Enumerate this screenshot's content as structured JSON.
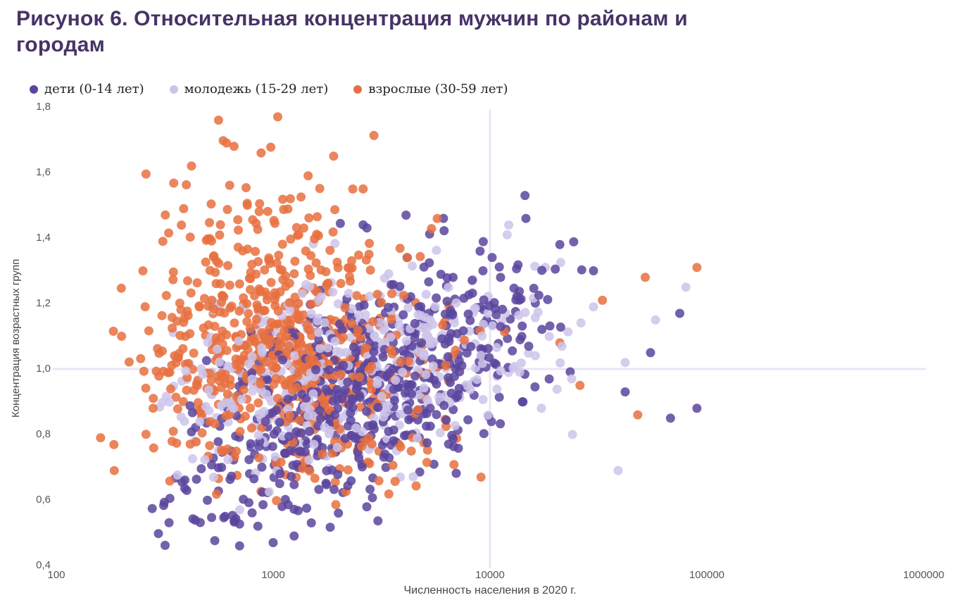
{
  "figure": {
    "title_lines": [
      "Рисунок 6. Относительная концентрация мужчин по районам и",
      "городам"
    ]
  },
  "theme": {
    "title_color": "#463366",
    "axis_text_color": "#55565a",
    "axis_title_color": "#45464a",
    "legend_text_color": "#222222",
    "grid_color": "#e9e6f4",
    "background": "#ffffff"
  },
  "chart_data": {
    "type": "scatter",
    "title": "Рисунок 6. Относительная концентрация мужчин по районам и городам",
    "xlabel": "Численность населения в 2020 г.",
    "ylabel": "Концентрация возрастных групп",
    "x_scale": "log10",
    "xlim": [
      100,
      1000000
    ],
    "ylim": [
      0.4,
      1.8
    ],
    "x_ticks": [
      100,
      1000,
      10000,
      100000,
      1000000
    ],
    "y_tick_values": [
      0.4,
      0.6,
      0.8,
      1.0,
      1.2,
      1.4,
      1.6,
      1.8
    ],
    "y_ticks_display": [
      "0,4",
      "0,6",
      "0,8",
      "1,0",
      "1,2",
      "1,4",
      "1,6",
      "1,8"
    ],
    "grid": {
      "x_values": [
        10000
      ],
      "y_values": [
        1.0
      ]
    },
    "legend_position": "top",
    "marker_radius": 6.5,
    "marker_opacity": 0.85,
    "values_estimated_from_pixels": true,
    "series": [
      {
        "name": "дети (0-14 лет)",
        "color": "#5b459e",
        "count": 600,
        "seed": 101,
        "distribution": {
          "log10_x_mean": 3.45,
          "log10_x_sd": 0.4,
          "log10_x_clip": [
            2.4,
            4.45
          ],
          "y_mean": 0.95,
          "y_sd": 0.165,
          "y_slope_per_decade": 0.28,
          "x_ref_log10": 3.45,
          "y_clip": [
            0.45,
            1.5
          ]
        },
        "highlight_points": [
          [
            700,
            0.46
          ],
          [
            1000,
            0.47
          ],
          [
            1250,
            0.49
          ],
          [
            850,
            0.52
          ],
          [
            1500,
            0.53
          ],
          [
            600,
            0.55
          ],
          [
            2000,
            0.56
          ],
          [
            1100,
            0.58
          ],
          [
            14500,
            1.53
          ],
          [
            4100,
            1.47
          ],
          [
            6100,
            1.46
          ],
          [
            2600,
            1.44
          ],
          [
            21000,
            1.38
          ],
          [
            9000,
            1.36
          ],
          [
            30000,
            1.3
          ],
          [
            75000,
            1.17
          ],
          [
            55000,
            1.05
          ],
          [
            90000,
            0.88
          ],
          [
            68000,
            0.85
          ],
          [
            42000,
            0.93
          ]
        ]
      },
      {
        "name": "молодежь (15-29 лет)",
        "color": "#ccc4ea",
        "count": 440,
        "seed": 202,
        "distribution": {
          "log10_x_mean": 3.35,
          "log10_x_sd": 0.45,
          "log10_x_clip": [
            2.45,
            4.55
          ],
          "y_mean": 1.0,
          "y_sd": 0.13,
          "y_slope_per_decade": 0.12,
          "x_ref_log10": 3.35,
          "y_clip": [
            0.55,
            1.45
          ]
        },
        "highlight_points": [
          [
            80000,
            1.25
          ],
          [
            30000,
            1.19
          ],
          [
            58000,
            1.15
          ],
          [
            42000,
            1.02
          ],
          [
            24000,
            0.8
          ],
          [
            39000,
            0.69
          ],
          [
            700,
            0.57
          ],
          [
            18000,
            1.31
          ],
          [
            12000,
            1.41
          ]
        ]
      },
      {
        "name": "взрослые (30-59 лет)",
        "color": "#e87040",
        "count": 680,
        "seed": 303,
        "distribution": {
          "log10_x_mean": 3.05,
          "log10_x_sd": 0.33,
          "log10_x_clip": [
            2.25,
            4.2
          ],
          "y_mean": 1.07,
          "y_sd": 0.2,
          "y_slope_per_decade": -0.08,
          "x_ref_log10": 3.05,
          "y_clip": [
            0.58,
            1.78
          ]
        },
        "highlight_points": [
          [
            1050,
            1.77
          ],
          [
            560,
            1.76
          ],
          [
            610,
            1.69
          ],
          [
            660,
            1.68
          ],
          [
            880,
            1.66
          ],
          [
            1900,
            1.65
          ],
          [
            420,
            1.62
          ],
          [
            310,
            1.39
          ],
          [
            1450,
            1.59
          ],
          [
            2600,
            1.55
          ],
          [
            1200,
            1.52
          ],
          [
            760,
            1.5
          ],
          [
            90000,
            1.31
          ],
          [
            52000,
            1.28
          ],
          [
            33000,
            1.21
          ],
          [
            26000,
            0.95
          ],
          [
            48000,
            0.86
          ],
          [
            21000,
            1.08
          ],
          [
            160,
            0.79
          ],
          [
            185,
            0.69
          ],
          [
            200,
            1.1
          ]
        ]
      }
    ]
  }
}
